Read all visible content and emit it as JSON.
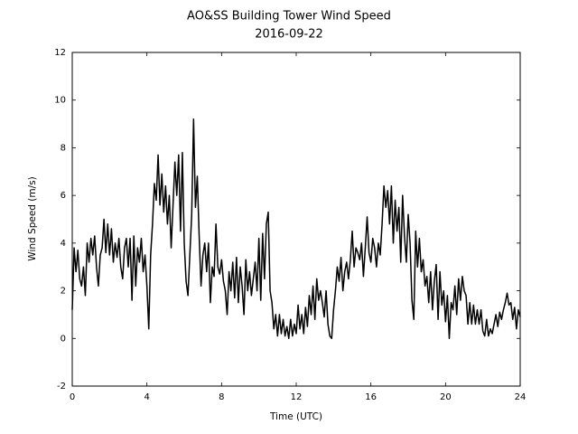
{
  "chart_data": {
    "type": "line",
    "title": "AO&SS Building Tower Wind Speed",
    "subtitle": "2016-09-22",
    "x_label": "Time (UTC)",
    "y_label": "Wind Speed (m/s)",
    "color": "#000000",
    "xlim": [
      0,
      24
    ],
    "xticks": [
      0,
      4,
      8,
      12,
      16,
      20,
      24
    ],
    "ylim": [
      -2,
      12
    ],
    "yticks": [
      -2,
      0,
      2,
      4,
      6,
      8,
      10,
      12
    ],
    "grid": false,
    "x": [
      0,
      0.1,
      0.2,
      0.3,
      0.4,
      0.5,
      0.6,
      0.7,
      0.8,
      0.9,
      1,
      1.1,
      1.2,
      1.3,
      1.4,
      1.5,
      1.6,
      1.7,
      1.8,
      1.9,
      2,
      2.1,
      2.2,
      2.3,
      2.4,
      2.5,
      2.6,
      2.7,
      2.8,
      2.9,
      3,
      3.1,
      3.2,
      3.3,
      3.4,
      3.5,
      3.6,
      3.7,
      3.8,
      3.9,
      4,
      4.1,
      4.2,
      4.3,
      4.4,
      4.5,
      4.6,
      4.7,
      4.8,
      4.9,
      5,
      5.1,
      5.2,
      5.3,
      5.4,
      5.5,
      5.6,
      5.7,
      5.8,
      5.9,
      6,
      6.1,
      6.2,
      6.3,
      6.4,
      6.5,
      6.6,
      6.7,
      6.8,
      6.9,
      7,
      7.1,
      7.2,
      7.3,
      7.4,
      7.5,
      7.6,
      7.7,
      7.8,
      7.9,
      8,
      8.1,
      8.2,
      8.3,
      8.4,
      8.5,
      8.6,
      8.7,
      8.8,
      8.9,
      9,
      9.1,
      9.2,
      9.3,
      9.4,
      9.5,
      9.6,
      9.7,
      9.8,
      9.9,
      10,
      10.1,
      10.2,
      10.3,
      10.4,
      10.5,
      10.6,
      10.7,
      10.8,
      10.9,
      11,
      11.1,
      11.2,
      11.3,
      11.4,
      11.5,
      11.6,
      11.7,
      11.8,
      11.9,
      12,
      12.1,
      12.2,
      12.3,
      12.4,
      12.5,
      12.6,
      12.7,
      12.8,
      12.9,
      13,
      13.1,
      13.2,
      13.3,
      13.4,
      13.5,
      13.6,
      13.7,
      13.8,
      13.9,
      14,
      14.1,
      14.2,
      14.3,
      14.4,
      14.5,
      14.6,
      14.7,
      14.8,
      14.9,
      15,
      15.1,
      15.2,
      15.3,
      15.4,
      15.5,
      15.6,
      15.7,
      15.8,
      15.9,
      16,
      16.1,
      16.2,
      16.3,
      16.4,
      16.5,
      16.6,
      16.7,
      16.8,
      16.9,
      17,
      17.1,
      17.2,
      17.3,
      17.4,
      17.5,
      17.6,
      17.7,
      17.8,
      17.9,
      18,
      18.1,
      18.2,
      18.3,
      18.4,
      18.5,
      18.6,
      18.7,
      18.8,
      18.9,
      19,
      19.1,
      19.2,
      19.3,
      19.4,
      19.5,
      19.6,
      19.7,
      19.8,
      19.9,
      20,
      20.1,
      20.2,
      20.3,
      20.4,
      20.5,
      20.6,
      20.7,
      20.8,
      20.9,
      21,
      21.1,
      21.2,
      21.3,
      21.4,
      21.5,
      21.6,
      21.7,
      21.8,
      21.9,
      22,
      22.1,
      22.2,
      22.3,
      22.4,
      22.5,
      22.6,
      22.7,
      22.8,
      22.9,
      23,
      23.1,
      23.2,
      23.3,
      23.4,
      23.5,
      23.6,
      23.7,
      23.8,
      23.9,
      24
    ],
    "values": [
      1.2,
      3.8,
      2.8,
      3.7,
      2.5,
      2.2,
      3.0,
      1.8,
      4.0,
      3.2,
      4.2,
      3.5,
      4.3,
      3.0,
      2.2,
      3.5,
      3.8,
      5.0,
      3.6,
      4.8,
      3.5,
      4.6,
      3.2,
      4.0,
      3.4,
      4.2,
      3.0,
      2.5,
      3.8,
      4.2,
      3.0,
      4.2,
      1.6,
      4.3,
      2.2,
      3.8,
      3.2,
      4.2,
      2.8,
      3.5,
      2.2,
      0.4,
      3.5,
      4.8,
      6.5,
      5.8,
      7.7,
      5.6,
      6.9,
      5.3,
      6.4,
      4.8,
      6.0,
      3.8,
      5.6,
      7.4,
      6.0,
      7.7,
      4.5,
      7.8,
      4.0,
      2.4,
      1.8,
      3.5,
      5.2,
      9.2,
      5.5,
      6.8,
      4.3,
      2.2,
      3.5,
      4.0,
      2.8,
      4.0,
      1.5,
      3.0,
      2.6,
      4.8,
      3.0,
      2.7,
      3.3,
      2.4,
      2.0,
      1.0,
      2.8,
      2.0,
      3.2,
      1.7,
      3.4,
      1.5,
      3.0,
      2.2,
      1.0,
      3.3,
      2.0,
      2.8,
      1.8,
      2.5,
      3.2,
      2.0,
      4.2,
      1.6,
      4.4,
      2.5,
      4.8,
      5.3,
      2.0,
      1.5,
      0.4,
      1.0,
      0.1,
      1.0,
      0.2,
      0.8,
      0.1,
      0.5,
      0.0,
      0.8,
      0.1,
      0.6,
      0.2,
      1.4,
      0.4,
      1.0,
      0.2,
      1.3,
      0.5,
      1.8,
      1.0,
      2.2,
      0.8,
      2.5,
      1.6,
      2.0,
      1.5,
      0.9,
      2.0,
      0.6,
      0.1,
      0.0,
      1.2,
      2.0,
      3.0,
      2.4,
      3.4,
      2.0,
      2.8,
      3.2,
      2.5,
      3.3,
      4.5,
      3.0,
      3.8,
      3.6,
      3.3,
      4.0,
      2.6,
      3.8,
      5.1,
      3.6,
      3.2,
      4.2,
      3.8,
      3.0,
      4.0,
      3.5,
      4.8,
      6.4,
      5.5,
      6.2,
      4.8,
      6.4,
      4.0,
      5.8,
      4.5,
      5.5,
      3.2,
      6.0,
      4.3,
      3.2,
      5.2,
      4.0,
      1.6,
      0.8,
      4.5,
      3.0,
      4.2,
      2.8,
      3.3,
      2.2,
      2.6,
      1.5,
      2.8,
      1.2,
      2.4,
      3.1,
      0.8,
      2.8,
      1.4,
      2.0,
      0.7,
      1.8,
      0.0,
      1.5,
      1.2,
      2.2,
      1.0,
      2.5,
      1.6,
      2.6,
      2.0,
      1.8,
      0.6,
      1.5,
      0.6,
      1.4,
      0.6,
      1.2,
      0.6,
      1.2,
      0.3,
      0.1,
      0.8,
      0.1,
      0.4,
      0.2,
      0.6,
      1.0,
      0.5,
      1.1,
      0.8,
      1.2,
      1.5,
      1.9,
      1.4,
      1.5,
      0.8,
      1.3,
      0.4,
      1.2,
      0.9
    ]
  }
}
